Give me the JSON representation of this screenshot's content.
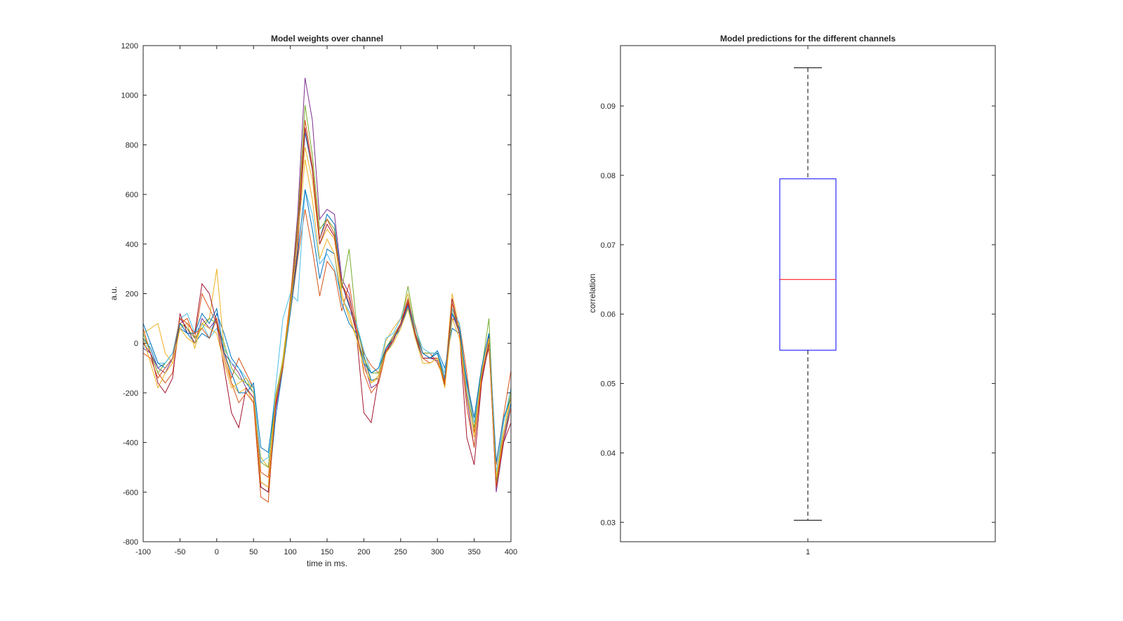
{
  "chart_data": [
    {
      "type": "line",
      "title": "Model weights over channel",
      "xlabel": "time in ms.",
      "ylabel": "a.u.",
      "xlim": [
        -100,
        400
      ],
      "ylim": [
        -800,
        1200
      ],
      "xticks": [
        -100,
        -50,
        0,
        50,
        100,
        150,
        200,
        250,
        300,
        350,
        400
      ],
      "yticks": [
        -800,
        -600,
        -400,
        -200,
        0,
        200,
        400,
        600,
        800,
        1000,
        1200
      ],
      "x": [
        -100,
        -90,
        -80,
        -70,
        -60,
        -50,
        -40,
        -30,
        -20,
        -10,
        0,
        10,
        20,
        30,
        40,
        50,
        60,
        70,
        80,
        90,
        100,
        110,
        120,
        130,
        140,
        150,
        160,
        170,
        180,
        190,
        200,
        210,
        220,
        230,
        240,
        250,
        260,
        270,
        280,
        290,
        300,
        310,
        320,
        330,
        340,
        350,
        360,
        370,
        380,
        390,
        400
      ],
      "colors": [
        "#0072BD",
        "#D95319",
        "#EDB120",
        "#7E2F8E",
        "#77AC30",
        "#4DBEEE",
        "#A2142F"
      ],
      "series": [
        {
          "values": [
            20,
            -20,
            -100,
            -80,
            -40,
            60,
            40,
            0,
            40,
            20,
            120,
            40,
            -60,
            -100,
            -160,
            -200,
            -580,
            -600,
            -300,
            -100,
            150,
            450,
            850,
            700,
            420,
            520,
            480,
            240,
            150,
            80,
            -50,
            -150,
            -140,
            -40,
            10,
            80,
            140,
            20,
            -60,
            -60,
            -30,
            -100,
            60,
            40,
            -150,
            -300,
            -100,
            40,
            -560,
            -380,
            -240
          ]
        },
        {
          "values": [
            60,
            -40,
            -120,
            -160,
            -120,
            80,
            100,
            20,
            200,
            140,
            80,
            -40,
            -140,
            -60,
            -120,
            -180,
            -520,
            -540,
            -260,
            -80,
            120,
            340,
            540,
            380,
            190,
            330,
            290,
            130,
            240,
            60,
            -40,
            -90,
            -120,
            -20,
            30,
            80,
            170,
            70,
            -40,
            -40,
            -80,
            -150,
            100,
            80,
            -120,
            -360,
            -130,
            -20,
            -490,
            -290,
            -110
          ]
        },
        {
          "values": [
            40,
            60,
            80,
            -40,
            -80,
            60,
            80,
            -20,
            80,
            100,
            300,
            -20,
            -160,
            -200,
            -180,
            -240,
            -460,
            -500,
            -230,
            -60,
            180,
            500,
            790,
            660,
            400,
            460,
            420,
            200,
            100,
            20,
            -60,
            -160,
            -130,
            10,
            60,
            100,
            200,
            40,
            -40,
            -40,
            -40,
            -140,
            200,
            60,
            -180,
            -300,
            -120,
            10,
            -560,
            -360,
            -200
          ]
        },
        {
          "values": [
            -20,
            -40,
            -100,
            -120,
            -60,
            100,
            60,
            0,
            100,
            60,
            100,
            -40,
            -80,
            -120,
            -180,
            -220,
            -560,
            -580,
            -270,
            -90,
            160,
            520,
            1070,
            900,
            500,
            540,
            520,
            260,
            200,
            40,
            -80,
            -180,
            -160,
            -30,
            20,
            70,
            160,
            40,
            -40,
            -60,
            -70,
            -150,
            120,
            40,
            -220,
            -420,
            -150,
            30,
            -600,
            -400,
            -260
          ]
        },
        {
          "values": [
            40,
            -40,
            -120,
            -80,
            -40,
            80,
            60,
            20,
            60,
            100,
            80,
            0,
            -100,
            -140,
            -160,
            -180,
            -480,
            -500,
            -210,
            -70,
            160,
            480,
            960,
            760,
            460,
            500,
            460,
            220,
            380,
            80,
            -60,
            -120,
            -120,
            -20,
            30,
            80,
            230,
            60,
            -40,
            -40,
            -40,
            -160,
            140,
            40,
            -200,
            -340,
            -110,
            100,
            -560,
            -320,
            -200
          ]
        },
        {
          "values": [
            -20,
            0,
            -80,
            -80,
            -40,
            100,
            120,
            40,
            80,
            20,
            60,
            -20,
            -80,
            -100,
            -140,
            -180,
            -480,
            -460,
            -180,
            100,
            200,
            170,
            620,
            520,
            320,
            360,
            300,
            180,
            130,
            80,
            -30,
            -120,
            -100,
            20,
            40,
            100,
            180,
            60,
            -20,
            -40,
            -40,
            -120,
            140,
            80,
            -180,
            -320,
            -130,
            0,
            -520,
            -320,
            -180
          ]
        },
        {
          "values": [
            0,
            -40,
            -160,
            -200,
            -140,
            120,
            40,
            40,
            240,
            200,
            80,
            -100,
            -280,
            -340,
            -180,
            -220,
            -580,
            -600,
            -250,
            -90,
            140,
            380,
            870,
            700,
            400,
            480,
            430,
            240,
            160,
            40,
            -280,
            -320,
            -140,
            -30,
            10,
            80,
            160,
            30,
            -60,
            -60,
            -60,
            -170,
            180,
            40,
            -380,
            -490,
            -160,
            0,
            -580,
            -400,
            -320
          ]
        },
        {
          "values": [
            80,
            0,
            -80,
            -100,
            -60,
            80,
            40,
            40,
            120,
            80,
            140,
            -40,
            -120,
            -200,
            -200,
            -160,
            -420,
            -440,
            -220,
            -100,
            120,
            360,
            620,
            460,
            260,
            380,
            360,
            160,
            80,
            40,
            -80,
            -120,
            -100,
            -20,
            20,
            60,
            150,
            40,
            -40,
            -60,
            -40,
            -140,
            120,
            60,
            -160,
            -300,
            -100,
            40,
            -480,
            -300,
            -220
          ]
        },
        {
          "values": [
            -40,
            -60,
            -140,
            -100,
            -60,
            100,
            80,
            40,
            60,
            20,
            100,
            -60,
            -160,
            -240,
            -200,
            -240,
            -620,
            -640,
            -240,
            -100,
            180,
            460,
            900,
            720,
            420,
            500,
            440,
            240,
            180,
            60,
            -120,
            -200,
            -160,
            -40,
            20,
            80,
            180,
            40,
            -60,
            -80,
            -60,
            -160,
            160,
            40,
            -260,
            -420,
            -140,
            20,
            -580,
            -380,
            -260
          ]
        },
        {
          "values": [
            20,
            -80,
            -180,
            -120,
            -80,
            60,
            20,
            0,
            80,
            60,
            40,
            -80,
            -180,
            -160,
            -140,
            -200,
            -560,
            -580,
            -220,
            -80,
            140,
            420,
            740,
            580,
            340,
            420,
            360,
            180,
            120,
            20,
            -100,
            -160,
            -140,
            -40,
            0,
            60,
            140,
            20,
            -80,
            -80,
            -60,
            -180,
            100,
            20,
            -200,
            -380,
            -120,
            20,
            -540,
            -360,
            -220
          ]
        }
      ]
    },
    {
      "type": "box",
      "title": "Model predictions for the different channels",
      "xlabel": "",
      "ylabel": "correlation",
      "ylim": [
        0.0272,
        0.0987
      ],
      "yticks": [
        0.03,
        0.04,
        0.05,
        0.06,
        0.07,
        0.08,
        0.09
      ],
      "ytick_labels": [
        "0.03",
        "0.04",
        "0.05",
        "0.06",
        "0.07",
        "0.08",
        "0.09"
      ],
      "categories": [
        "1"
      ],
      "box": {
        "min": 0.0303,
        "q1": 0.0548,
        "median": 0.065,
        "q3": 0.0795,
        "max": 0.0955
      },
      "colors": {
        "box": "#0000FF",
        "median": "#FF0000",
        "whisker": "#000000"
      }
    }
  ]
}
